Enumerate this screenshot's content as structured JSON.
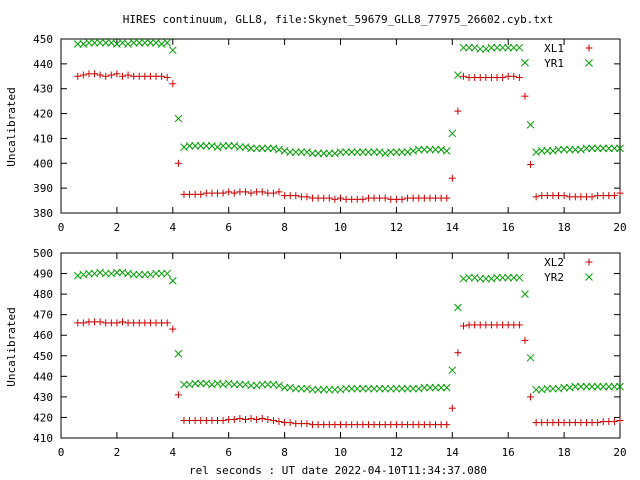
{
  "title": "HIRES continuum, GLL8, file:Skynet_59679_GLL8_77975_26602.cyb.txt",
  "xlabel": "rel seconds : UT date 2022-04-10T11:34:37.080",
  "colors": {
    "red": "#cc0000",
    "green": "#00a000"
  },
  "chart_data": [
    {
      "type": "scatter",
      "ylabel": "Uncalibrated",
      "xlim": [
        0,
        20
      ],
      "ylim": [
        380,
        450
      ],
      "xticks": [
        0,
        2,
        4,
        6,
        8,
        10,
        12,
        14,
        16,
        18,
        20
      ],
      "yticks": [
        380,
        390,
        400,
        410,
        420,
        430,
        440,
        450
      ],
      "legend": "top-right",
      "series": [
        {
          "name": "XL1",
          "marker": "plus",
          "color": "#cc0000",
          "x": [
            0.6,
            0.8,
            1.0,
            1.2,
            1.4,
            1.6,
            1.8,
            2.0,
            2.2,
            2.4,
            2.6,
            2.8,
            3.0,
            3.2,
            3.4,
            3.6,
            3.8,
            4.0,
            4.2,
            4.4,
            4.6,
            4.8,
            5.0,
            5.2,
            5.4,
            5.6,
            5.8,
            6.0,
            6.2,
            6.4,
            6.6,
            6.8,
            7.0,
            7.2,
            7.4,
            7.6,
            7.8,
            8.0,
            8.2,
            8.4,
            8.6,
            8.8,
            9.0,
            9.2,
            9.4,
            9.6,
            9.8,
            10.0,
            10.2,
            10.4,
            10.6,
            10.8,
            11.0,
            11.2,
            11.4,
            11.6,
            11.8,
            12.0,
            12.2,
            12.4,
            12.6,
            12.8,
            13.0,
            13.2,
            13.4,
            13.6,
            13.8,
            14.0,
            14.2,
            14.4,
            14.6,
            14.8,
            15.0,
            15.2,
            15.4,
            15.6,
            15.8,
            16.0,
            16.2,
            16.4,
            16.6,
            16.8,
            17.0,
            17.2,
            17.4,
            17.6,
            17.8,
            18.0,
            18.2,
            18.4,
            18.6,
            18.8,
            19.0,
            19.2,
            19.4,
            19.6,
            19.8,
            20.0
          ],
          "y": [
            435,
            435.5,
            436,
            436,
            435.5,
            435,
            435.5,
            436,
            435,
            435.5,
            435,
            435,
            435,
            435,
            435,
            435,
            434.5,
            432,
            400,
            387.5,
            387.5,
            387.5,
            387.5,
            388,
            388,
            388,
            388,
            388.5,
            388,
            388.5,
            388.5,
            388,
            388.5,
            388.5,
            388,
            388,
            388.5,
            387,
            387,
            387,
            386.5,
            386.5,
            386,
            386,
            386,
            386,
            385.5,
            386,
            385.5,
            385.5,
            385.5,
            385.5,
            386,
            386,
            386,
            386,
            385.5,
            385.5,
            385.5,
            386,
            386,
            386,
            386,
            386,
            386,
            386,
            386,
            394,
            421,
            435,
            434.5,
            434.5,
            434.5,
            434.5,
            434.5,
            434.5,
            434.5,
            435,
            435,
            434.5,
            427,
            399.5,
            386.5,
            387,
            387,
            387,
            387,
            387,
            386.5,
            386.5,
            386.5,
            386.5,
            386.5,
            387,
            387,
            387,
            387,
            388
          ]
        },
        {
          "name": "YR1",
          "marker": "cross",
          "color": "#00a000",
          "x": [
            0.6,
            0.8,
            1.0,
            1.2,
            1.4,
            1.6,
            1.8,
            2.0,
            2.2,
            2.4,
            2.6,
            2.8,
            3.0,
            3.2,
            3.4,
            3.6,
            3.8,
            4.0,
            4.2,
            4.4,
            4.6,
            4.8,
            5.0,
            5.2,
            5.4,
            5.6,
            5.8,
            6.0,
            6.2,
            6.4,
            6.6,
            6.8,
            7.0,
            7.2,
            7.4,
            7.6,
            7.8,
            8.0,
            8.2,
            8.4,
            8.6,
            8.8,
            9.0,
            9.2,
            9.4,
            9.6,
            9.8,
            10.0,
            10.2,
            10.4,
            10.6,
            10.8,
            11.0,
            11.2,
            11.4,
            11.6,
            11.8,
            12.0,
            12.2,
            12.4,
            12.6,
            12.8,
            13.0,
            13.2,
            13.4,
            13.6,
            13.8,
            14.0,
            14.2,
            14.4,
            14.6,
            14.8,
            15.0,
            15.2,
            15.4,
            15.6,
            15.8,
            16.0,
            16.2,
            16.4,
            16.6,
            16.8,
            17.0,
            17.2,
            17.4,
            17.6,
            17.8,
            18.0,
            18.2,
            18.4,
            18.6,
            18.8,
            19.0,
            19.2,
            19.4,
            19.6,
            19.8,
            20.0
          ],
          "y": [
            448,
            448,
            448.5,
            448.5,
            448.5,
            448.5,
            448.5,
            448,
            448.5,
            448,
            448.5,
            448.5,
            448.5,
            448.5,
            448.5,
            448,
            448.5,
            445.5,
            418,
            406.5,
            407,
            407,
            407,
            407,
            407,
            406.5,
            407,
            407,
            407,
            406.5,
            406.5,
            406,
            406,
            406,
            406,
            406,
            405.5,
            405,
            404.5,
            404.5,
            404.5,
            404.5,
            404,
            404,
            404,
            404,
            404,
            404.5,
            404.5,
            404.5,
            404.5,
            404.5,
            404.5,
            404.5,
            404.5,
            404,
            404.5,
            404.5,
            404.5,
            404.5,
            405,
            405.5,
            405.5,
            405.5,
            405.5,
            405.5,
            405,
            412,
            435.5,
            446.5,
            446.5,
            446.5,
            446,
            446,
            446.5,
            446.5,
            446.5,
            446.5,
            446.5,
            446.5,
            440.5,
            415.5,
            404.5,
            405,
            405,
            405,
            405.5,
            405.5,
            405.5,
            405.5,
            405.5,
            406,
            406,
            406,
            406,
            406,
            406,
            406
          ]
        }
      ]
    },
    {
      "type": "scatter",
      "ylabel": "Uncalibrated",
      "xlim": [
        0,
        20
      ],
      "ylim": [
        410,
        500
      ],
      "xticks": [
        0,
        2,
        4,
        6,
        8,
        10,
        12,
        14,
        16,
        18,
        20
      ],
      "yticks": [
        410,
        420,
        430,
        440,
        450,
        460,
        470,
        480,
        490,
        500
      ],
      "legend": "top-right",
      "series": [
        {
          "name": "XL2",
          "marker": "plus",
          "color": "#cc0000",
          "x": [
            0.6,
            0.8,
            1.0,
            1.2,
            1.4,
            1.6,
            1.8,
            2.0,
            2.2,
            2.4,
            2.6,
            2.8,
            3.0,
            3.2,
            3.4,
            3.6,
            3.8,
            4.0,
            4.2,
            4.4,
            4.6,
            4.8,
            5.0,
            5.2,
            5.4,
            5.6,
            5.8,
            6.0,
            6.2,
            6.4,
            6.6,
            6.8,
            7.0,
            7.2,
            7.4,
            7.6,
            7.8,
            8.0,
            8.2,
            8.4,
            8.6,
            8.8,
            9.0,
            9.2,
            9.4,
            9.6,
            9.8,
            10.0,
            10.2,
            10.4,
            10.6,
            10.8,
            11.0,
            11.2,
            11.4,
            11.6,
            11.8,
            12.0,
            12.2,
            12.4,
            12.6,
            12.8,
            13.0,
            13.2,
            13.4,
            13.6,
            13.8,
            14.0,
            14.2,
            14.4,
            14.6,
            14.8,
            15.0,
            15.2,
            15.4,
            15.6,
            15.8,
            16.0,
            16.2,
            16.4,
            16.6,
            16.8,
            17.0,
            17.2,
            17.4,
            17.6,
            17.8,
            18.0,
            18.2,
            18.4,
            18.6,
            18.8,
            19.0,
            19.2,
            19.4,
            19.6,
            19.8,
            20.0
          ],
          "y": [
            466,
            466,
            466.5,
            466.5,
            466.5,
            466,
            466,
            466,
            466.5,
            466,
            466,
            466,
            466,
            466,
            466,
            466,
            466,
            463,
            431,
            418.5,
            418.5,
            418.5,
            418.5,
            418.5,
            418.5,
            418.5,
            418.5,
            419,
            419,
            419.5,
            419,
            419.5,
            419,
            419.5,
            419,
            418.5,
            418,
            417.5,
            417.5,
            417,
            417,
            417,
            416.5,
            416.5,
            416.5,
            416.5,
            416.5,
            416.5,
            416.5,
            416.5,
            416.5,
            416.5,
            416.5,
            416.5,
            416.5,
            416.5,
            416.5,
            416.5,
            416.5,
            416.5,
            416.5,
            416.5,
            416.5,
            416.5,
            416.5,
            416.5,
            416.5,
            424.5,
            451.5,
            464.5,
            465,
            465,
            465,
            465,
            465,
            465,
            465,
            465,
            465,
            465,
            457.5,
            430,
            417.5,
            417.5,
            417.5,
            417.5,
            417.5,
            417.5,
            417.5,
            417.5,
            417.5,
            417.5,
            417.5,
            417.5,
            418,
            418,
            418,
            418.5
          ]
        },
        {
          "name": "YR2",
          "marker": "cross",
          "color": "#00a000",
          "x": [
            0.6,
            0.8,
            1.0,
            1.2,
            1.4,
            1.6,
            1.8,
            2.0,
            2.2,
            2.4,
            2.6,
            2.8,
            3.0,
            3.2,
            3.4,
            3.6,
            3.8,
            4.0,
            4.2,
            4.4,
            4.6,
            4.8,
            5.0,
            5.2,
            5.4,
            5.6,
            5.8,
            6.0,
            6.2,
            6.4,
            6.6,
            6.8,
            7.0,
            7.2,
            7.4,
            7.6,
            7.8,
            8.0,
            8.2,
            8.4,
            8.6,
            8.8,
            9.0,
            9.2,
            9.4,
            9.6,
            9.8,
            10.0,
            10.2,
            10.4,
            10.6,
            10.8,
            11.0,
            11.2,
            11.4,
            11.6,
            11.8,
            12.0,
            12.2,
            12.4,
            12.6,
            12.8,
            13.0,
            13.2,
            13.4,
            13.6,
            13.8,
            14.0,
            14.2,
            14.4,
            14.6,
            14.8,
            15.0,
            15.2,
            15.4,
            15.6,
            15.8,
            16.0,
            16.2,
            16.4,
            16.6,
            16.8,
            17.0,
            17.2,
            17.4,
            17.6,
            17.8,
            18.0,
            18.2,
            18.4,
            18.6,
            18.8,
            19.0,
            19.2,
            19.4,
            19.6,
            19.8,
            20.0
          ],
          "y": [
            489,
            489.5,
            490,
            490,
            490.5,
            490,
            490,
            490.5,
            490.5,
            490,
            489.5,
            489.5,
            489.5,
            489.5,
            490,
            490,
            490,
            486.5,
            451,
            436,
            436,
            436.5,
            436.5,
            436.5,
            436,
            436.5,
            436,
            436.5,
            436,
            436,
            436,
            435.5,
            435.5,
            436,
            436,
            436,
            435.5,
            434.5,
            434.5,
            434,
            434,
            434,
            433.5,
            433.5,
            433.5,
            433.5,
            433.5,
            433.5,
            434,
            434,
            434,
            434,
            434,
            434,
            434,
            434,
            434,
            434,
            434,
            434,
            434,
            434,
            434.5,
            434.5,
            434.5,
            434.5,
            434.5,
            443,
            473.5,
            487.5,
            488,
            488,
            487.5,
            487.5,
            487.5,
            488,
            488,
            488,
            488,
            488,
            480,
            449,
            433.5,
            433.5,
            434,
            434,
            434,
            434.5,
            434.5,
            435,
            435,
            435,
            435,
            435,
            435,
            435,
            435,
            435
          ]
        }
      ]
    }
  ]
}
